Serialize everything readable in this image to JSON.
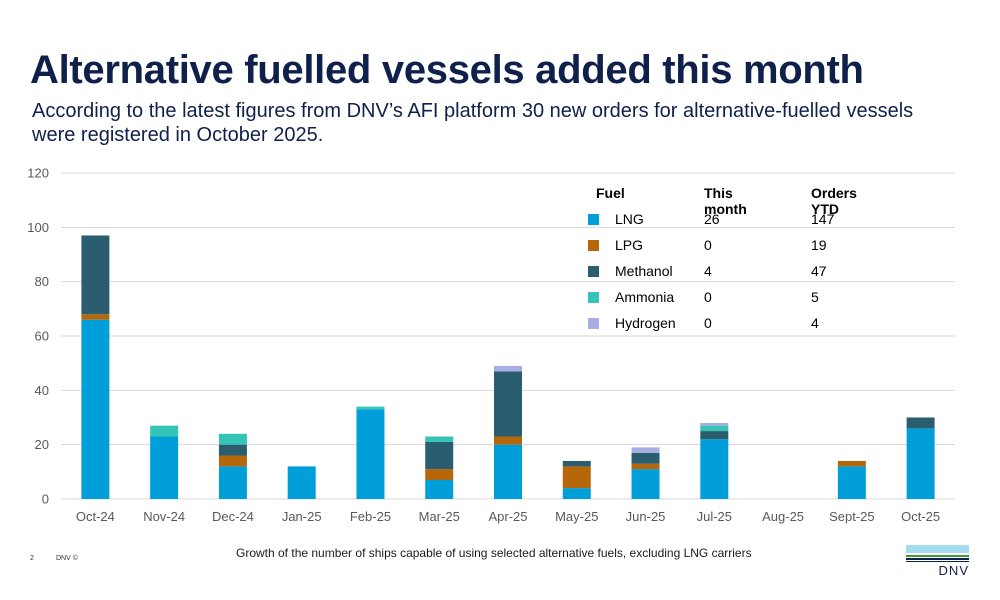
{
  "header": {
    "title": "Alternative fuelled vessels added this month",
    "subtitle": "According to the latest figures from DNV’s AFI platform 30 new orders for alternative-fuelled vessels were registered in October 2025."
  },
  "legend_table": {
    "headers": {
      "fuel": "Fuel",
      "this_month": "This month",
      "orders_ytd": "Orders YTD"
    },
    "rows": [
      {
        "fuel": "LNG",
        "this_month": "26",
        "orders_ytd": "147",
        "color": "#009fda"
      },
      {
        "fuel": "LPG",
        "this_month": "0",
        "orders_ytd": "19",
        "color": "#b5670a"
      },
      {
        "fuel": "Methanol",
        "this_month": "4",
        "orders_ytd": "47",
        "color": "#2a5d6d"
      },
      {
        "fuel": "Ammonia",
        "this_month": "0",
        "orders_ytd": "5",
        "color": "#36c3b8"
      },
      {
        "fuel": "Hydrogen",
        "this_month": "0",
        "orders_ytd": "4",
        "color": "#a8aee5"
      }
    ]
  },
  "chart_data": {
    "type": "bar",
    "stacked": true,
    "title": "",
    "xlabel": "",
    "ylabel": "",
    "ylim": [
      0,
      120
    ],
    "yticks": [
      0,
      20,
      40,
      60,
      80,
      100,
      120
    ],
    "grid": true,
    "legend_placement": "top-right",
    "categories": [
      "Oct-24",
      "Nov-24",
      "Dec-24",
      "Jan-25",
      "Feb-25",
      "Mar-25",
      "Apr-25",
      "May-25",
      "Jun-25",
      "Jul-25",
      "Aug-25",
      "Sept-25",
      "Oct-25"
    ],
    "series": [
      {
        "name": "LNG",
        "color": "#009fda",
        "values": [
          66,
          23,
          12,
          12,
          33,
          7,
          20,
          4,
          11,
          22,
          0,
          12,
          26
        ]
      },
      {
        "name": "LPG",
        "color": "#b5670a",
        "values": [
          2,
          0,
          4,
          0,
          0,
          4,
          3,
          8,
          2,
          0,
          0,
          2,
          0
        ]
      },
      {
        "name": "Methanol",
        "color": "#2a5d6d",
        "values": [
          29,
          0,
          4,
          0,
          0,
          10,
          24,
          2,
          4,
          3,
          0,
          0,
          4
        ]
      },
      {
        "name": "Ammonia",
        "color": "#36c3b8",
        "values": [
          0,
          4,
          4,
          0,
          1,
          2,
          0,
          0,
          0,
          2,
          0,
          0,
          0
        ]
      },
      {
        "name": "Hydrogen",
        "color": "#a8aee5",
        "values": [
          0,
          0,
          0,
          0,
          0,
          0,
          2,
          0,
          2,
          1,
          0,
          0,
          0
        ]
      }
    ]
  },
  "footer": {
    "page_number": "2",
    "brand": "DNV ©",
    "note": "Growth of the number of ships capable of using selected alternative fuels, excluding LNG carriers",
    "logo_text": "DNV"
  }
}
